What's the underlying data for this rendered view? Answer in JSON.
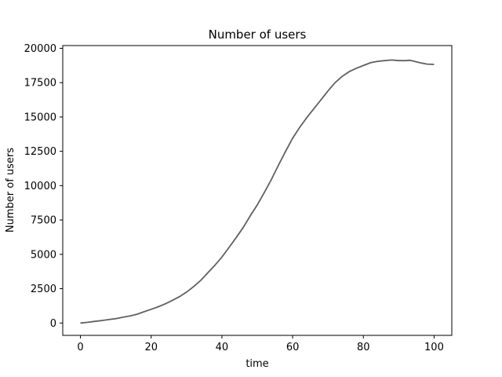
{
  "chart_data": {
    "type": "line",
    "title": "Number of users",
    "xlabel": "time",
    "ylabel": "Number of users",
    "xlim": [
      -5,
      105
    ],
    "ylim": [
      -900,
      20200
    ],
    "xticks": [
      0,
      20,
      40,
      60,
      80,
      100
    ],
    "yticks": [
      0,
      2500,
      5000,
      7500,
      10000,
      12500,
      15000,
      17500,
      20000
    ],
    "grid": false,
    "series": [
      {
        "color": "#606060",
        "x": [
          0,
          2,
          4,
          6,
          8,
          10,
          12,
          14,
          16,
          18,
          20,
          22,
          24,
          26,
          28,
          30,
          32,
          34,
          36,
          38,
          40,
          42,
          44,
          46,
          48,
          50,
          52,
          54,
          56,
          58,
          60,
          62,
          64,
          66,
          68,
          70,
          72,
          74,
          76,
          78,
          80,
          82,
          84,
          86,
          88,
          90,
          92,
          93,
          94,
          96,
          98,
          100
        ],
        "y": [
          0,
          50,
          120,
          180,
          250,
          320,
          420,
          520,
          640,
          820,
          1000,
          1180,
          1400,
          1650,
          1920,
          2250,
          2650,
          3100,
          3650,
          4200,
          4800,
          5500,
          6200,
          6950,
          7800,
          8600,
          9500,
          10450,
          11500,
          12500,
          13450,
          14250,
          14950,
          15600,
          16250,
          16900,
          17500,
          17950,
          18300,
          18550,
          18750,
          18950,
          19050,
          19100,
          19150,
          19100,
          19100,
          19130,
          19080,
          18950,
          18850,
          18830
        ]
      }
    ]
  }
}
